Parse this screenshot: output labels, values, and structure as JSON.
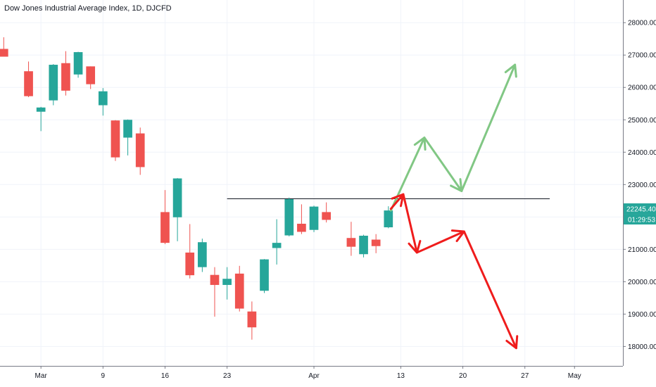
{
  "chart_data": {
    "type": "candlestick",
    "title": "Dow Jones Industrial Average Index, 1D, DJCFD",
    "ylim": [
      17400,
      28700
    ],
    "y_ticks": [
      18000,
      19000,
      20000,
      21000,
      22000,
      23000,
      24000,
      25000,
      26000,
      27000,
      28000
    ],
    "y_tick_labels": [
      "18000.00",
      "19000.00",
      "20000.00",
      "21000.00",
      "22000.00",
      "23000.00",
      "24000.00",
      "25000.00",
      "26000.00",
      "27000.00",
      "28000.00"
    ],
    "x_ticks": [
      {
        "label": "Mar",
        "index": 3
      },
      {
        "label": "9",
        "index": 8
      },
      {
        "label": "16",
        "index": 13
      },
      {
        "label": "23",
        "index": 18
      },
      {
        "label": "Apr",
        "index": 25
      },
      {
        "label": "13",
        "index": 32
      },
      {
        "label": "20",
        "index": 37
      },
      {
        "label": "27",
        "index": 42
      },
      {
        "label": "May",
        "index": 46
      }
    ],
    "x_range": [
      -0.3,
      49.9
    ],
    "grid": true,
    "up_color": "#26a69a",
    "down_color": "#ef5350",
    "candles": [
      {
        "index": 0,
        "open": 27190,
        "high": 27550,
        "low": 26960,
        "close": 26950
      },
      {
        "index": 2,
        "open": 26500,
        "high": 26800,
        "low": 25700,
        "close": 25730
      },
      {
        "index": 3,
        "open": 25250,
        "high": 25400,
        "low": 24650,
        "close": 25380
      },
      {
        "index": 4,
        "open": 25600,
        "high": 26720,
        "low": 25450,
        "close": 26700
      },
      {
        "index": 5,
        "open": 26750,
        "high": 27120,
        "low": 25750,
        "close": 25900
      },
      {
        "index": 6,
        "open": 26400,
        "high": 27100,
        "low": 26300,
        "close": 27090
      },
      {
        "index": 7,
        "open": 26650,
        "high": 26650,
        "low": 25950,
        "close": 26100
      },
      {
        "index": 8,
        "open": 25450,
        "high": 25980,
        "low": 25130,
        "close": 25880
      },
      {
        "index": 9,
        "open": 24980,
        "high": 24990,
        "low": 23730,
        "close": 23840
      },
      {
        "index": 10,
        "open": 24450,
        "high": 25010,
        "low": 23900,
        "close": 25000
      },
      {
        "index": 11,
        "open": 24580,
        "high": 24760,
        "low": 23300,
        "close": 23540
      },
      {
        "index": 13,
        "open": 22150,
        "high": 22830,
        "low": 21160,
        "close": 21200
      },
      {
        "index": 14,
        "open": 21990,
        "high": 23200,
        "low": 21250,
        "close": 23190
      },
      {
        "index": 15,
        "open": 20900,
        "high": 21780,
        "low": 20100,
        "close": 20200
      },
      {
        "index": 16,
        "open": 20450,
        "high": 21330,
        "low": 20300,
        "close": 21220
      },
      {
        "index": 17,
        "open": 20210,
        "high": 20450,
        "low": 18920,
        "close": 19900
      },
      {
        "index": 18,
        "open": 19900,
        "high": 20450,
        "low": 19450,
        "close": 20090
      },
      {
        "index": 19,
        "open": 20250,
        "high": 20490,
        "low": 19080,
        "close": 19170
      },
      {
        "index": 20,
        "open": 19080,
        "high": 19390,
        "low": 18210,
        "close": 18590
      },
      {
        "index": 21,
        "open": 19720,
        "high": 20700,
        "low": 19650,
        "close": 20690
      },
      {
        "index": 22,
        "open": 21040,
        "high": 21930,
        "low": 20530,
        "close": 21200
      },
      {
        "index": 23,
        "open": 21430,
        "high": 22600,
        "low": 21400,
        "close": 22550
      },
      {
        "index": 24,
        "open": 21790,
        "high": 22390,
        "low": 21470,
        "close": 21540
      },
      {
        "index": 25,
        "open": 21600,
        "high": 22350,
        "low": 21530,
        "close": 22320
      },
      {
        "index": 26,
        "open": 22150,
        "high": 22450,
        "low": 21830,
        "close": 21910
      },
      {
        "index": 28,
        "open": 21350,
        "high": 21850,
        "low": 20800,
        "close": 21080
      },
      {
        "index": 29,
        "open": 20850,
        "high": 21450,
        "low": 20750,
        "close": 21420
      },
      {
        "index": 30,
        "open": 21300,
        "high": 21470,
        "low": 20880,
        "close": 21100
      },
      {
        "index": 31,
        "open": 21680,
        "high": 22330,
        "low": 21650,
        "close": 22200
      }
    ],
    "annotations": {
      "resistance_line": {
        "value": 22560,
        "from_index": 18,
        "to_index": 44
      },
      "bullish_path": {
        "color": "#81c784",
        "points": [
          [
            31.2,
            22200
          ],
          [
            33.9,
            24450
          ],
          [
            36.9,
            22800
          ],
          [
            41.2,
            26700
          ]
        ]
      },
      "bearish_path": {
        "color": "#ef1c1c",
        "points": [
          [
            31.2,
            22250
          ],
          [
            32.2,
            22700
          ],
          [
            33.3,
            20900
          ],
          [
            37.1,
            21550
          ],
          [
            41.3,
            17950
          ]
        ]
      },
      "extra_arrowheads": [
        {
          "color": "#ef1c1c",
          "at": [
            31.2,
            22250
          ],
          "toward": [
            34,
            22450
          ]
        }
      ]
    },
    "last_price_label": "22245.40",
    "last_price_value": 22245.4,
    "last_price_color": "#26a69a",
    "countdown_label": "01:29:53"
  }
}
